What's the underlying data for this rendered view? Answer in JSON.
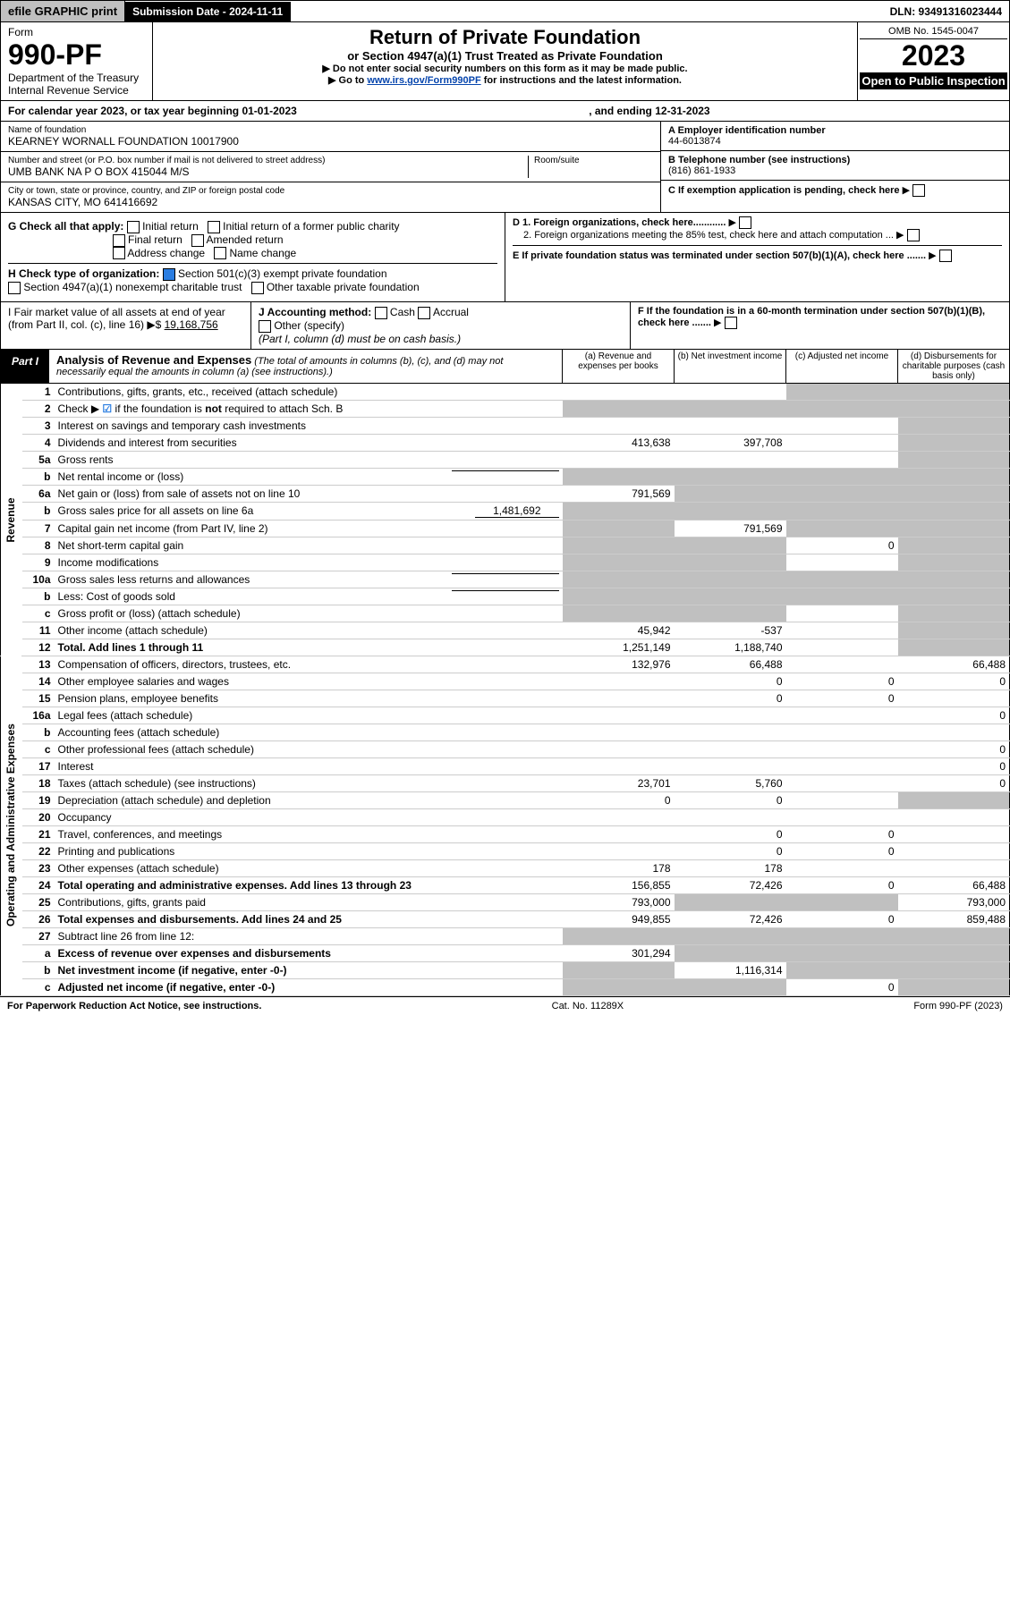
{
  "topbar": {
    "efile": "efile GRAPHIC print",
    "submission": "Submission Date - 2024-11-11",
    "dln": "DLN: 93491316023444"
  },
  "header": {
    "form_label": "Form",
    "form_num": "990-PF",
    "dept": "Department of the Treasury",
    "irs": "Internal Revenue Service",
    "title": "Return of Private Foundation",
    "subtitle": "or Section 4947(a)(1) Trust Treated as Private Foundation",
    "note1": "▶ Do not enter social security numbers on this form as it may be made public.",
    "note2_pre": "▶ Go to ",
    "note2_link": "www.irs.gov/Form990PF",
    "note2_post": " for instructions and the latest information.",
    "omb": "OMB No. 1545-0047",
    "year": "2023",
    "inspection": "Open to Public Inspection"
  },
  "calendar": {
    "text_a": "For calendar year 2023, or tax year beginning 01-01-2023",
    "text_b": ", and ending 12-31-2023"
  },
  "info": {
    "name_label": "Name of foundation",
    "name": "KEARNEY WORNALL FOUNDATION 10017900",
    "addr_label": "Number and street (or P.O. box number if mail is not delivered to street address)",
    "addr": "UMB BANK NA P O BOX 415044 M/S",
    "room_label": "Room/suite",
    "city_label": "City or town, state or province, country, and ZIP or foreign postal code",
    "city": "KANSAS CITY, MO  641416692",
    "ein_label": "A Employer identification number",
    "ein": "44-6013874",
    "phone_label": "B Telephone number (see instructions)",
    "phone": "(816) 861-1933",
    "c_label": "C If exemption application is pending, check here",
    "d1": "D 1. Foreign organizations, check here............",
    "d2": "2. Foreign organizations meeting the 85% test, check here and attach computation ...",
    "e": "E If private foundation status was terminated under section 507(b)(1)(A), check here .......",
    "f": "F If the foundation is in a 60-month termination under section 507(b)(1)(B), check here ......."
  },
  "checks": {
    "g_label": "G Check all that apply:",
    "g1": "Initial return",
    "g2": "Initial return of a former public charity",
    "g3": "Final return",
    "g4": "Amended return",
    "g5": "Address change",
    "g6": "Name change",
    "h_label": "H Check type of organization:",
    "h1": "Section 501(c)(3) exempt private foundation",
    "h2": "Section 4947(a)(1) nonexempt charitable trust",
    "h3": "Other taxable private foundation",
    "i_label": "I Fair market value of all assets at end of year (from Part II, col. (c), line 16) ▶$ ",
    "i_val": "19,168,756",
    "j_label": "J Accounting method:",
    "j1": "Cash",
    "j2": "Accrual",
    "j3": "Other (specify)",
    "j_note": "(Part I, column (d) must be on cash basis.)"
  },
  "part1": {
    "tab": "Part I",
    "title": "Analysis of Revenue and Expenses",
    "desc": " (The total of amounts in columns (b), (c), and (d) may not necessarily equal the amounts in column (a) (see instructions).)",
    "col_a": "(a) Revenue and expenses per books",
    "col_b": "(b) Net investment income",
    "col_c": "(c) Adjusted net income",
    "col_d": "(d) Disbursements for charitable purposes (cash basis only)"
  },
  "side": {
    "revenue": "Revenue",
    "expenses": "Operating and Administrative Expenses"
  },
  "rows": [
    {
      "n": "1",
      "d": "Contributions, gifts, grants, etc., received (attach schedule)",
      "a": "",
      "b": "",
      "c": "g",
      "dd": "g"
    },
    {
      "n": "2",
      "d": "Check ▶ ☑ if the foundation is not required to attach Sch. B",
      "a": "g",
      "b": "g",
      "c": "g",
      "dd": "g",
      "hasCheck": true
    },
    {
      "n": "3",
      "d": "Interest on savings and temporary cash investments",
      "a": "",
      "b": "",
      "c": "",
      "dd": "g"
    },
    {
      "n": "4",
      "d": "Dividends and interest from securities",
      "a": "413,638",
      "b": "397,708",
      "c": "",
      "dd": "g"
    },
    {
      "n": "5a",
      "d": "Gross rents",
      "a": "",
      "b": "",
      "c": "",
      "dd": "g"
    },
    {
      "n": "b",
      "d": "Net rental income or (loss)",
      "a": "g",
      "b": "g",
      "c": "g",
      "dd": "g",
      "inline": true
    },
    {
      "n": "6a",
      "d": "Net gain or (loss) from sale of assets not on line 10",
      "a": "791,569",
      "b": "g",
      "c": "g",
      "dd": "g"
    },
    {
      "n": "b",
      "d": "Gross sales price for all assets on line 6a",
      "a": "g",
      "b": "g",
      "c": "g",
      "dd": "g",
      "inline": true,
      "inlineVal": "1,481,692"
    },
    {
      "n": "7",
      "d": "Capital gain net income (from Part IV, line 2)",
      "a": "g",
      "b": "791,569",
      "c": "g",
      "dd": "g"
    },
    {
      "n": "8",
      "d": "Net short-term capital gain",
      "a": "g",
      "b": "g",
      "c": "0",
      "dd": "g"
    },
    {
      "n": "9",
      "d": "Income modifications",
      "a": "g",
      "b": "g",
      "c": "",
      "dd": "g"
    },
    {
      "n": "10a",
      "d": "Gross sales less returns and allowances",
      "a": "g",
      "b": "g",
      "c": "g",
      "dd": "g",
      "inline": true
    },
    {
      "n": "b",
      "d": "Less: Cost of goods sold",
      "a": "g",
      "b": "g",
      "c": "g",
      "dd": "g",
      "inline": true
    },
    {
      "n": "c",
      "d": "Gross profit or (loss) (attach schedule)",
      "a": "g",
      "b": "g",
      "c": "",
      "dd": "g"
    },
    {
      "n": "11",
      "d": "Other income (attach schedule)",
      "a": "45,942",
      "b": "-537",
      "c": "",
      "dd": "g"
    },
    {
      "n": "12",
      "d": "Total. Add lines 1 through 11",
      "a": "1,251,149",
      "b": "1,188,740",
      "c": "",
      "dd": "g",
      "bold": true
    },
    {
      "n": "13",
      "d": "Compensation of officers, directors, trustees, etc.",
      "a": "132,976",
      "b": "66,488",
      "c": "",
      "dd": "66,488"
    },
    {
      "n": "14",
      "d": "Other employee salaries and wages",
      "a": "",
      "b": "0",
      "c": "0",
      "dd": "0"
    },
    {
      "n": "15",
      "d": "Pension plans, employee benefits",
      "a": "",
      "b": "0",
      "c": "0",
      "dd": ""
    },
    {
      "n": "16a",
      "d": "Legal fees (attach schedule)",
      "a": "",
      "b": "",
      "c": "",
      "dd": "0"
    },
    {
      "n": "b",
      "d": "Accounting fees (attach schedule)",
      "a": "",
      "b": "",
      "c": "",
      "dd": ""
    },
    {
      "n": "c",
      "d": "Other professional fees (attach schedule)",
      "a": "",
      "b": "",
      "c": "",
      "dd": "0"
    },
    {
      "n": "17",
      "d": "Interest",
      "a": "",
      "b": "",
      "c": "",
      "dd": "0"
    },
    {
      "n": "18",
      "d": "Taxes (attach schedule) (see instructions)",
      "a": "23,701",
      "b": "5,760",
      "c": "",
      "dd": "0"
    },
    {
      "n": "19",
      "d": "Depreciation (attach schedule) and depletion",
      "a": "0",
      "b": "0",
      "c": "",
      "dd": "g"
    },
    {
      "n": "20",
      "d": "Occupancy",
      "a": "",
      "b": "",
      "c": "",
      "dd": ""
    },
    {
      "n": "21",
      "d": "Travel, conferences, and meetings",
      "a": "",
      "b": "0",
      "c": "0",
      "dd": ""
    },
    {
      "n": "22",
      "d": "Printing and publications",
      "a": "",
      "b": "0",
      "c": "0",
      "dd": ""
    },
    {
      "n": "23",
      "d": "Other expenses (attach schedule)",
      "a": "178",
      "b": "178",
      "c": "",
      "dd": ""
    },
    {
      "n": "24",
      "d": "Total operating and administrative expenses. Add lines 13 through 23",
      "a": "156,855",
      "b": "72,426",
      "c": "0",
      "dd": "66,488",
      "bold": true
    },
    {
      "n": "25",
      "d": "Contributions, gifts, grants paid",
      "a": "793,000",
      "b": "g",
      "c": "g",
      "dd": "793,000"
    },
    {
      "n": "26",
      "d": "Total expenses and disbursements. Add lines 24 and 25",
      "a": "949,855",
      "b": "72,426",
      "c": "0",
      "dd": "859,488",
      "bold": true
    },
    {
      "n": "27",
      "d": "Subtract line 26 from line 12:",
      "a": "g",
      "b": "g",
      "c": "g",
      "dd": "g"
    },
    {
      "n": "a",
      "d": "Excess of revenue over expenses and disbursements",
      "a": "301,294",
      "b": "g",
      "c": "g",
      "dd": "g",
      "bold": true
    },
    {
      "n": "b",
      "d": "Net investment income (if negative, enter -0-)",
      "a": "g",
      "b": "1,116,314",
      "c": "g",
      "dd": "g",
      "bold": true
    },
    {
      "n": "c",
      "d": "Adjusted net income (if negative, enter -0-)",
      "a": "g",
      "b": "g",
      "c": "0",
      "dd": "g",
      "bold": true
    }
  ],
  "footer": {
    "left": "For Paperwork Reduction Act Notice, see instructions.",
    "mid": "Cat. No. 11289X",
    "right": "Form 990-PF (2023)"
  }
}
